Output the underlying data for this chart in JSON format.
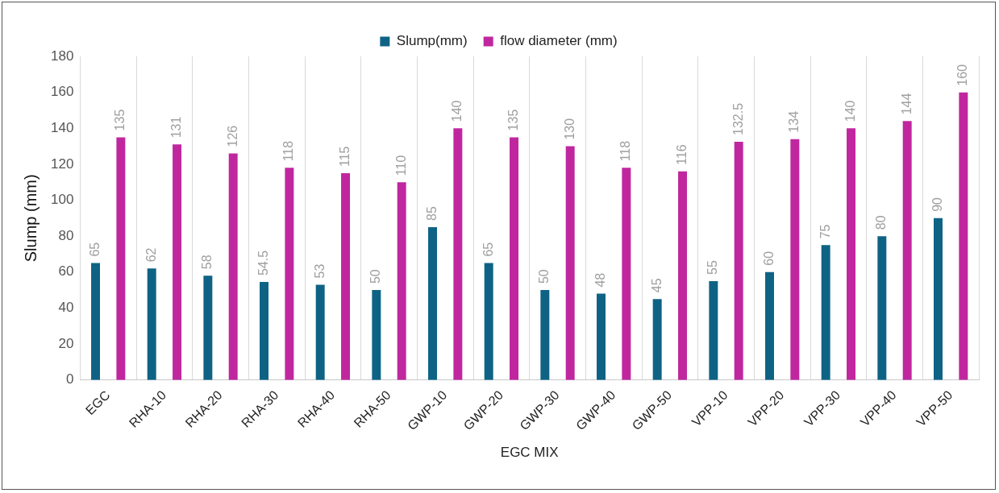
{
  "chart_data": {
    "type": "bar",
    "xlabel": "EGC MIX",
    "ylabel": "Slump (mm)",
    "categories": [
      "EGC",
      "RHA-10",
      "RHA-20",
      "RHA-30",
      "RHA-40",
      "RHA-50",
      "GWP-10",
      "GWP-20",
      "GWP-30",
      "GWP-40",
      "GWP-50",
      "VPP-10",
      "VPP-20",
      "VPP-30",
      "VPP-40",
      "VPP-50"
    ],
    "series": [
      {
        "name": "Slump(mm)",
        "color": "#0e6385",
        "values": [
          65,
          62,
          58,
          54.5,
          53,
          50,
          85,
          65,
          50,
          48,
          45,
          55,
          60,
          75,
          80,
          90
        ]
      },
      {
        "name": "flow diameter (mm)",
        "color": "#c0279f",
        "values": [
          135,
          131,
          126,
          118,
          115,
          110,
          140,
          135,
          130,
          118,
          116,
          132.5,
          134,
          140,
          144,
          160
        ]
      }
    ],
    "ylim": [
      0,
      180
    ],
    "yticks": [
      0,
      20,
      40,
      60,
      80,
      100,
      120,
      140,
      160,
      180
    ],
    "grid": "x",
    "legend": "top",
    "data_labels": true
  }
}
